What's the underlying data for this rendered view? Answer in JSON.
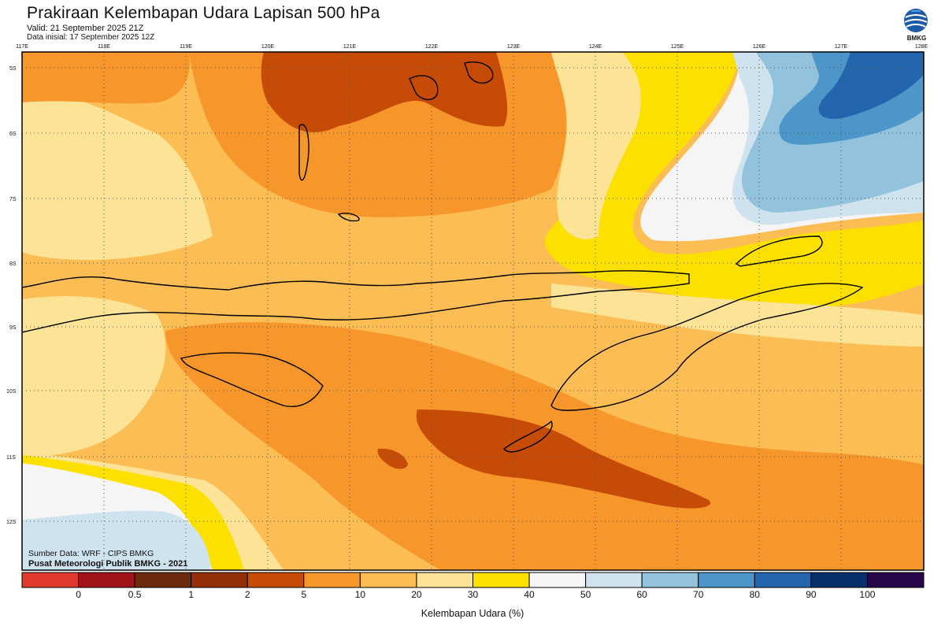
{
  "title": "Prakiraan Kelembapan Udara Lapisan 500 hPa",
  "valid": "Valid: 21 September 2025 21Z",
  "initial": "Data inisial: 17 September 2025 12Z",
  "logo": {
    "icon": "bmkg-logo",
    "text": "BMKG"
  },
  "lon_ticks": [
    "117E",
    "118E",
    "119E",
    "120E",
    "121E",
    "122E",
    "123E",
    "124E",
    "125E",
    "126E",
    "127E",
    "128E"
  ],
  "lat_ticks": [
    "5S",
    "6S",
    "7S",
    "8S",
    "9S",
    "10S",
    "11S",
    "12S"
  ],
  "source_line1": "Sumber Data: WRF - CIPS BMKG",
  "source_line2": "Pusat Meteorologi Publik BMKG - 2021",
  "colorbar": {
    "colors": [
      "#e03a2e",
      "#a3141a",
      "#6e2a0d",
      "#93300a",
      "#c64b07",
      "#f7962b",
      "#fbbd54",
      "#fde396",
      "#fbe000",
      "#f5f5f5",
      "#cfe3ef",
      "#93c2dd",
      "#4d96c9",
      "#2366ad",
      "#08306b",
      "#27064a"
    ],
    "labels": [
      "0",
      "0.5",
      "1",
      "2",
      "5",
      "10",
      "20",
      "30",
      "40",
      "50",
      "60",
      "70",
      "80",
      "90",
      "100"
    ],
    "title": "Kelembapan Udara (%)"
  }
}
